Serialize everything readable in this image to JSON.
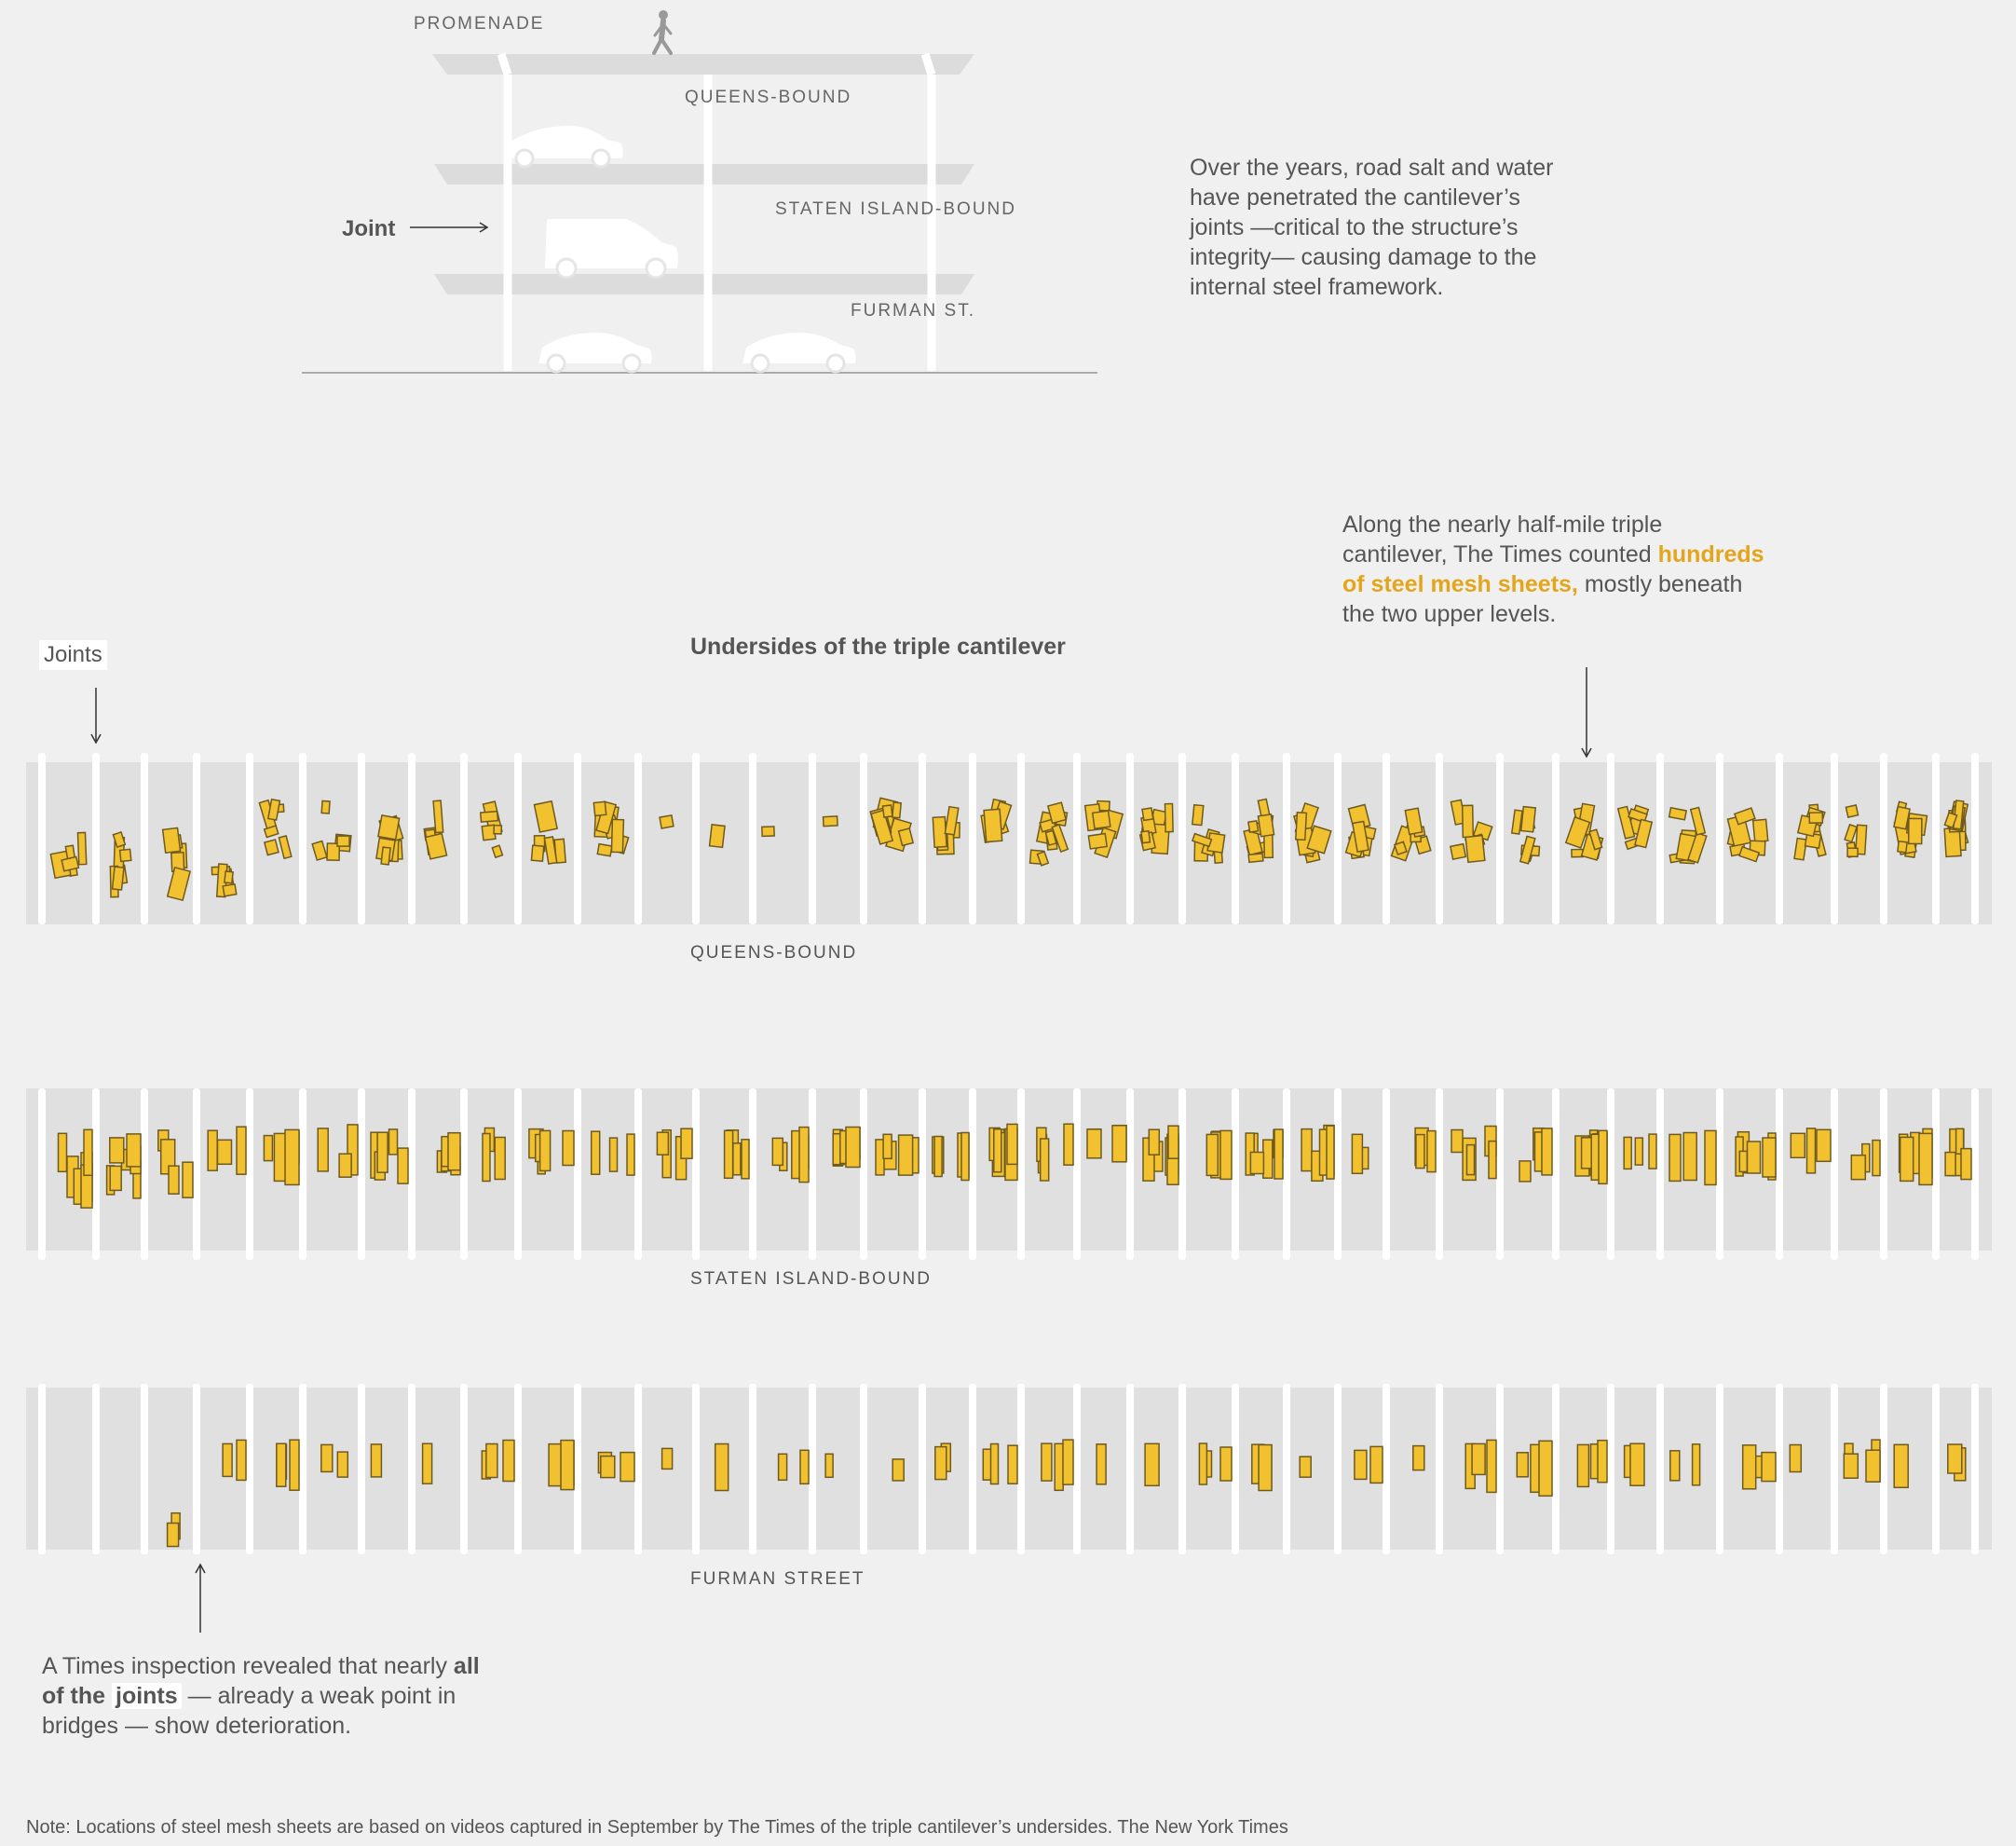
{
  "cross_section": {
    "levels": {
      "promenade": "PROMENADE",
      "queens": "QUEENS-BOUND",
      "staten": "STATEN ISLAND-BOUND",
      "furman": "FURMAN ST."
    },
    "joint_label": "Joint",
    "description": "Over the years, road salt and water have penetrated the cantilever’s joints —critical to the structure’s integrity— causing damage to the internal steel framework."
  },
  "annotation_right": {
    "part1": "Along the nearly half-mile triple cantilever, The Times counted",
    "highlight": "hundreds of steel mesh sheets,",
    "part2": "mostly beneath the two upper levels."
  },
  "chart_title": "Undersides of the triple cantilever",
  "joints_tag": "Joints",
  "bands": [
    {
      "label": "QUEENS-BOUND"
    },
    {
      "label": "STATEN ISLAND-BOUND"
    },
    {
      "label": "FURMAN STREET"
    }
  ],
  "annotation_left": {
    "part1": "A Times inspection revealed that nearly",
    "bold": "all of the",
    "chip": "joints",
    "part2": "— already a weak point in bridges — show deterioration."
  },
  "note": "Note: Locations of steel mesh sheets are based on videos captured in September by The Times of the triple cantilever’s undersides.",
  "credit": "The New York Times",
  "colors": {
    "background": "#f0f0f0",
    "deck": "#e0e0e0",
    "mesh_fill": "#f2c130",
    "mesh_stroke": "#6e5a1e",
    "highlight": "#e3a51b"
  }
}
